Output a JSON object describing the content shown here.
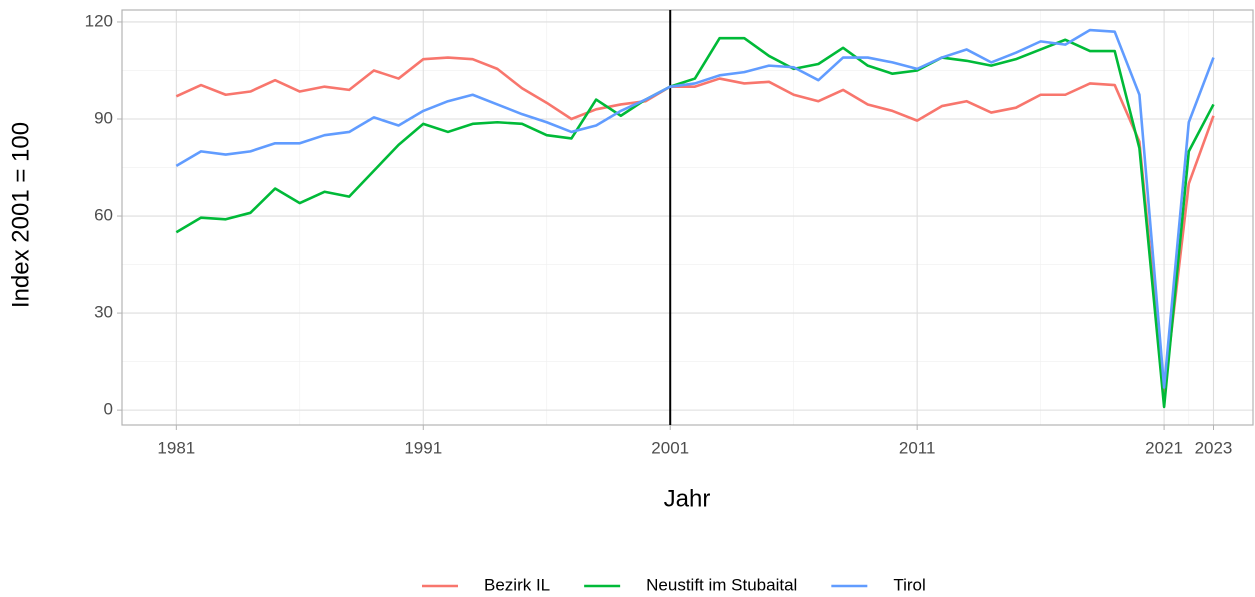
{
  "chart_data": {
    "type": "line",
    "xlabel": "Jahr",
    "ylabel": "Index 2001 = 100",
    "x": [
      1981,
      1982,
      1983,
      1984,
      1985,
      1986,
      1987,
      1988,
      1989,
      1990,
      1991,
      1992,
      1993,
      1994,
      1995,
      1996,
      1997,
      1998,
      1999,
      2000,
      2001,
      2002,
      2003,
      2004,
      2005,
      2006,
      2007,
      2008,
      2009,
      2010,
      2011,
      2012,
      2013,
      2014,
      2015,
      2016,
      2017,
      2018,
      2019,
      2020,
      2021,
      2022,
      2023
    ],
    "series": [
      {
        "name": "Bezirk IL",
        "color": "#F8766D",
        "values": [
          97,
          100.5,
          97.5,
          98.5,
          102,
          98.5,
          100,
          99,
          105,
          102.5,
          108.5,
          109,
          108.5,
          105.5,
          99.5,
          95,
          90,
          93,
          94.5,
          95.5,
          100,
          100,
          102.5,
          101,
          101.5,
          97.5,
          95.5,
          99,
          94.5,
          92.5,
          89.5,
          94,
          95.5,
          92,
          93.5,
          97.5,
          97.5,
          101,
          100.5,
          83,
          5,
          70,
          91
        ]
      },
      {
        "name": "Neustift im Stubaital",
        "color": "#00BA38",
        "values": [
          55,
          59.5,
          59,
          61,
          68.5,
          64,
          67.5,
          66,
          74,
          82,
          88.5,
          86,
          88.5,
          89,
          88.5,
          85,
          84,
          96,
          91,
          96,
          100,
          102.5,
          115,
          115,
          109.5,
          105.5,
          107,
          112,
          106.5,
          104,
          105,
          109,
          108,
          106.5,
          108.5,
          111.5,
          114.5,
          111,
          111,
          81,
          1,
          80,
          94.5
        ]
      },
      {
        "name": "Tirol",
        "color": "#619CFF",
        "values": [
          75.5,
          80,
          79,
          80,
          82.5,
          82.5,
          85,
          86,
          90.5,
          88,
          92.5,
          95.5,
          97.5,
          94.5,
          91.5,
          89,
          86,
          88,
          92.5,
          96,
          100,
          101,
          103.5,
          104.5,
          106.5,
          106,
          102,
          109,
          109,
          107.5,
          105.5,
          109,
          111.5,
          107.5,
          110.5,
          114,
          113,
          117.5,
          117,
          97.5,
          7,
          89,
          109
        ]
      }
    ],
    "xlim": [
      1978.8,
      2024.6
    ],
    "ylim": [
      -4.6,
      123.7
    ],
    "xticks": [
      1981,
      1991,
      2001,
      2011,
      2021,
      2023
    ],
    "yticks": [
      0,
      30,
      60,
      90,
      120
    ],
    "vline": 2001,
    "grid": true,
    "legend": "bottom"
  }
}
